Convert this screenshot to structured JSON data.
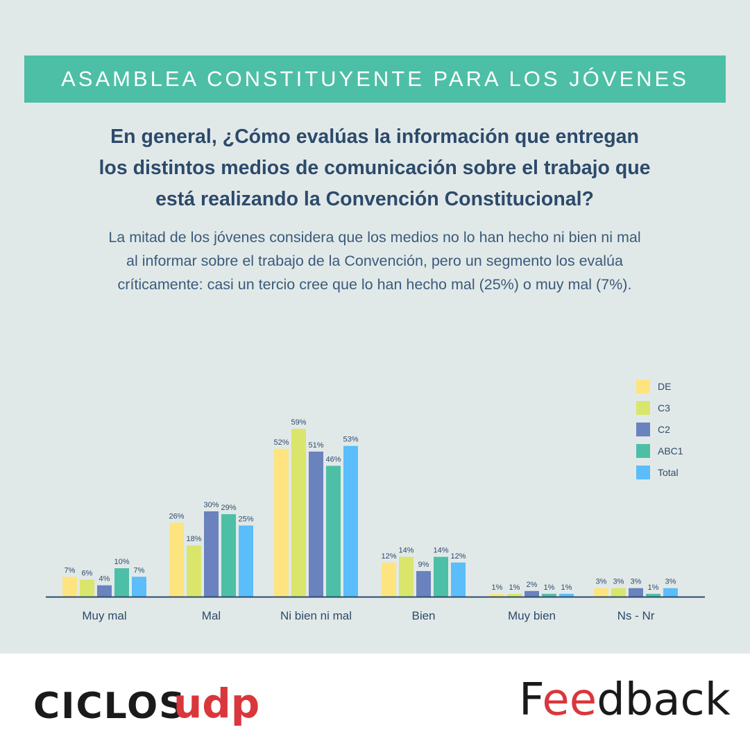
{
  "header": {
    "title": "ASAMBLEA CONSTITUYENTE PARA LOS JÓVENES"
  },
  "question": {
    "line1": "En general, ¿Cómo evalúas la información que entregan",
    "line2": "los distintos medios de comunicación sobre el trabajo que",
    "line3": "está realizando la Convención Constitucional?"
  },
  "summary": {
    "line1": "La mitad de los jóvenes considera que los medios no lo han hecho ni bien ni mal",
    "line2": "al informar sobre el trabajo de la Convención, pero un segmento los evalúa",
    "line3": "críticamente: casi un tercio cree que  lo han hecho mal (25%) o muy mal (7%)."
  },
  "colors": {
    "background": "#e1e9e8",
    "banner": "#4dbfa6",
    "title_text": "#2c4a6b",
    "axis": "#2c4a6b"
  },
  "chart_data": {
    "type": "bar",
    "categories": [
      "Muy mal",
      "Mal",
      "Ni bien ni mal",
      "Bien",
      "Muy bien",
      "Ns - Nr"
    ],
    "series": [
      {
        "name": "DE",
        "color": "#fde47f",
        "values": [
          7,
          26,
          52,
          12,
          1,
          3
        ]
      },
      {
        "name": "C3",
        "color": "#d9e66b",
        "values": [
          6,
          18,
          59,
          14,
          1,
          3
        ]
      },
      {
        "name": "C2",
        "color": "#6a82bd",
        "values": [
          4,
          30,
          51,
          9,
          2,
          3
        ]
      },
      {
        "name": "ABC1",
        "color": "#4dbfa6",
        "values": [
          10,
          29,
          46,
          14,
          1,
          1
        ]
      },
      {
        "name": "Total",
        "color": "#5bbdfa",
        "values": [
          7,
          25,
          53,
          12,
          1,
          3
        ]
      }
    ],
    "value_suffix": "%",
    "ylim": [
      0,
      60
    ],
    "legend_position": "top-right",
    "grid": false
  },
  "footer": {
    "logo_ciclos": "CICLOS",
    "logo_udp": "udp",
    "logo_feedback_start": "F",
    "logo_feedback_ee": "ee",
    "logo_feedback_end": "dback"
  }
}
